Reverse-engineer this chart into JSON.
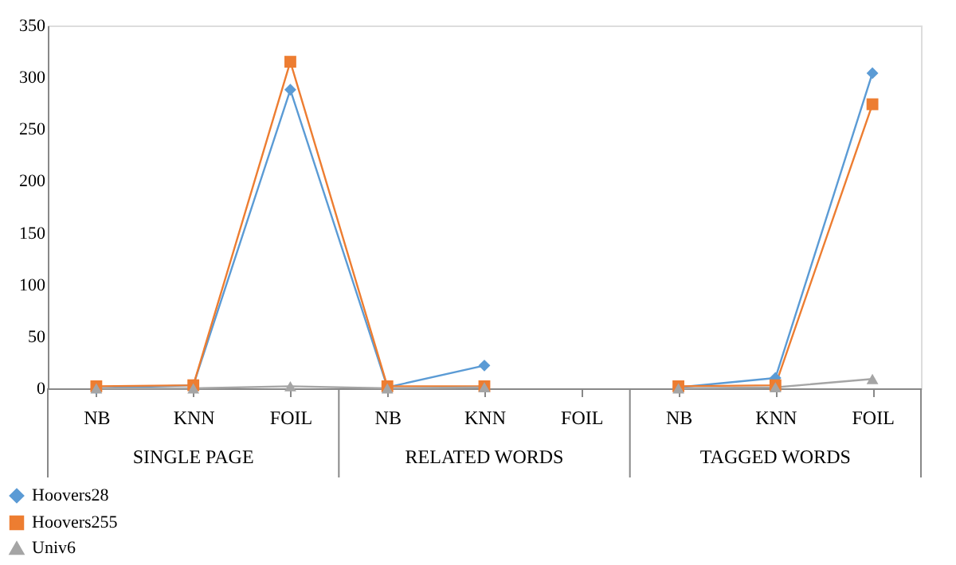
{
  "chart_data": {
    "type": "line",
    "categories": [
      "NB",
      "KNN",
      "FOIL",
      "NB",
      "KNN",
      "FOIL",
      "NB",
      "KNN",
      "FOIL"
    ],
    "annotations": [
      "SINGLE PAGE",
      "RELATED WORDS",
      "TAGGED WORDS"
    ],
    "series": [
      {
        "name": "Hoovers28",
        "color": "#5b9bd5",
        "marker": "diamond",
        "values": [
          0,
          3,
          288,
          1,
          22,
          null,
          1,
          10,
          304
        ]
      },
      {
        "name": "Hoovers255",
        "color": "#ed7d31",
        "marker": "square",
        "values": [
          2,
          3,
          315,
          2,
          2,
          null,
          2,
          3,
          274
        ]
      },
      {
        "name": "Univ6",
        "color": "#a5a5a5",
        "marker": "triangle",
        "values": [
          0,
          0,
          2,
          0,
          1,
          null,
          0,
          1,
          9
        ]
      }
    ],
    "ylim": [
      0,
      350
    ],
    "yticks": [
      0,
      50,
      100,
      150,
      200,
      250,
      300,
      350
    ],
    "grid": false,
    "legend": "bottom left",
    "line_style": "solid"
  }
}
